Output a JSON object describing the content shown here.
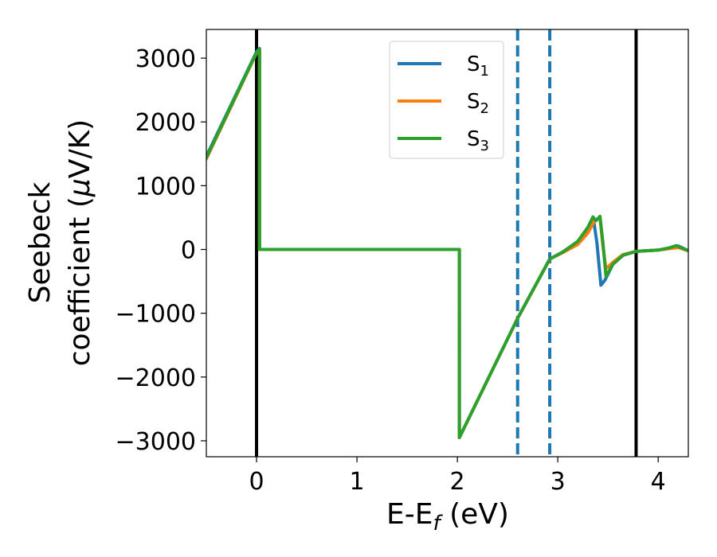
{
  "chart_data": {
    "type": "line",
    "title": "",
    "xlabel": {
      "main": "E-E",
      "sub": "f",
      "suffix": " (eV)"
    },
    "ylabel": {
      "line1": "Seebeck",
      "line2_text": "coefficient  (",
      "line2_mu": "μ",
      "line2_end": "V/K)"
    },
    "xlim": [
      -0.5,
      4.3
    ],
    "ylim": [
      -3250,
      3450
    ],
    "xticks": [
      0,
      1,
      2,
      3,
      4
    ],
    "xtick_labels": [
      "0",
      "1",
      "2",
      "3",
      "4"
    ],
    "yticks": [
      -3000,
      -2000,
      -1000,
      0,
      1000,
      2000,
      3000
    ],
    "ytick_labels": [
      "−3000",
      "−2000",
      "−1000",
      "0",
      "1000",
      "2000",
      "3000"
    ],
    "grid": false,
    "legend_position": "top-center",
    "vertical_lines": [
      {
        "x": 0,
        "style": "solid",
        "color": "#000000"
      },
      {
        "x": 3.78,
        "style": "solid",
        "color": "#000000"
      },
      {
        "x": 2.6,
        "style": "dashed",
        "color": "#1f77b4"
      },
      {
        "x": 2.92,
        "style": "dashed",
        "color": "#1f77b4"
      }
    ],
    "series": [
      {
        "name": "S",
        "sub": "1",
        "color": "#1f77b4",
        "points": [
          [
            -0.5,
            1460
          ],
          [
            0,
            3100
          ],
          [
            0.03,
            3150
          ],
          [
            0.03,
            0
          ],
          [
            2.02,
            0
          ],
          [
            2.02,
            -2950
          ],
          [
            2.6,
            -1080
          ],
          [
            2.92,
            -150
          ],
          [
            3.05,
            -40
          ],
          [
            3.2,
            120
          ],
          [
            3.3,
            320
          ],
          [
            3.36,
            430
          ],
          [
            3.39,
            100
          ],
          [
            3.43,
            -560
          ],
          [
            3.47,
            -480
          ],
          [
            3.55,
            -230
          ],
          [
            3.65,
            -90
          ],
          [
            3.78,
            -30
          ],
          [
            4.0,
            -10
          ],
          [
            4.1,
            20
          ],
          [
            4.2,
            55
          ],
          [
            4.3,
            -20
          ]
        ]
      },
      {
        "name": "S",
        "sub": "2",
        "color": "#ff7f0e",
        "points": [
          [
            -0.5,
            1420
          ],
          [
            0,
            3080
          ],
          [
            0.03,
            3130
          ],
          [
            0.03,
            0
          ],
          [
            2.02,
            0
          ],
          [
            2.02,
            -2950
          ],
          [
            2.6,
            -1080
          ],
          [
            2.92,
            -150
          ],
          [
            3.05,
            -50
          ],
          [
            3.2,
            80
          ],
          [
            3.3,
            260
          ],
          [
            3.37,
            460
          ],
          [
            3.42,
            500
          ],
          [
            3.45,
            40
          ],
          [
            3.48,
            -300
          ],
          [
            3.55,
            -200
          ],
          [
            3.65,
            -80
          ],
          [
            3.78,
            -30
          ],
          [
            4.0,
            -10
          ],
          [
            4.1,
            10
          ],
          [
            4.2,
            30
          ],
          [
            4.3,
            -20
          ]
        ]
      },
      {
        "name": "S",
        "sub": "3",
        "color": "#2ca02c",
        "points": [
          [
            -0.5,
            1440
          ],
          [
            0,
            3090
          ],
          [
            0.03,
            3140
          ],
          [
            0.03,
            0
          ],
          [
            2.02,
            0
          ],
          [
            2.02,
            -2950
          ],
          [
            2.6,
            -1080
          ],
          [
            2.92,
            -150
          ],
          [
            3.05,
            -40
          ],
          [
            3.2,
            130
          ],
          [
            3.3,
            350
          ],
          [
            3.35,
            510
          ],
          [
            3.38,
            450
          ],
          [
            3.42,
            520
          ],
          [
            3.45,
            100
          ],
          [
            3.48,
            -420
          ],
          [
            3.55,
            -230
          ],
          [
            3.65,
            -90
          ],
          [
            3.78,
            -30
          ],
          [
            4.0,
            -10
          ],
          [
            4.1,
            20
          ],
          [
            4.18,
            60
          ],
          [
            4.3,
            -20
          ]
        ]
      }
    ]
  }
}
